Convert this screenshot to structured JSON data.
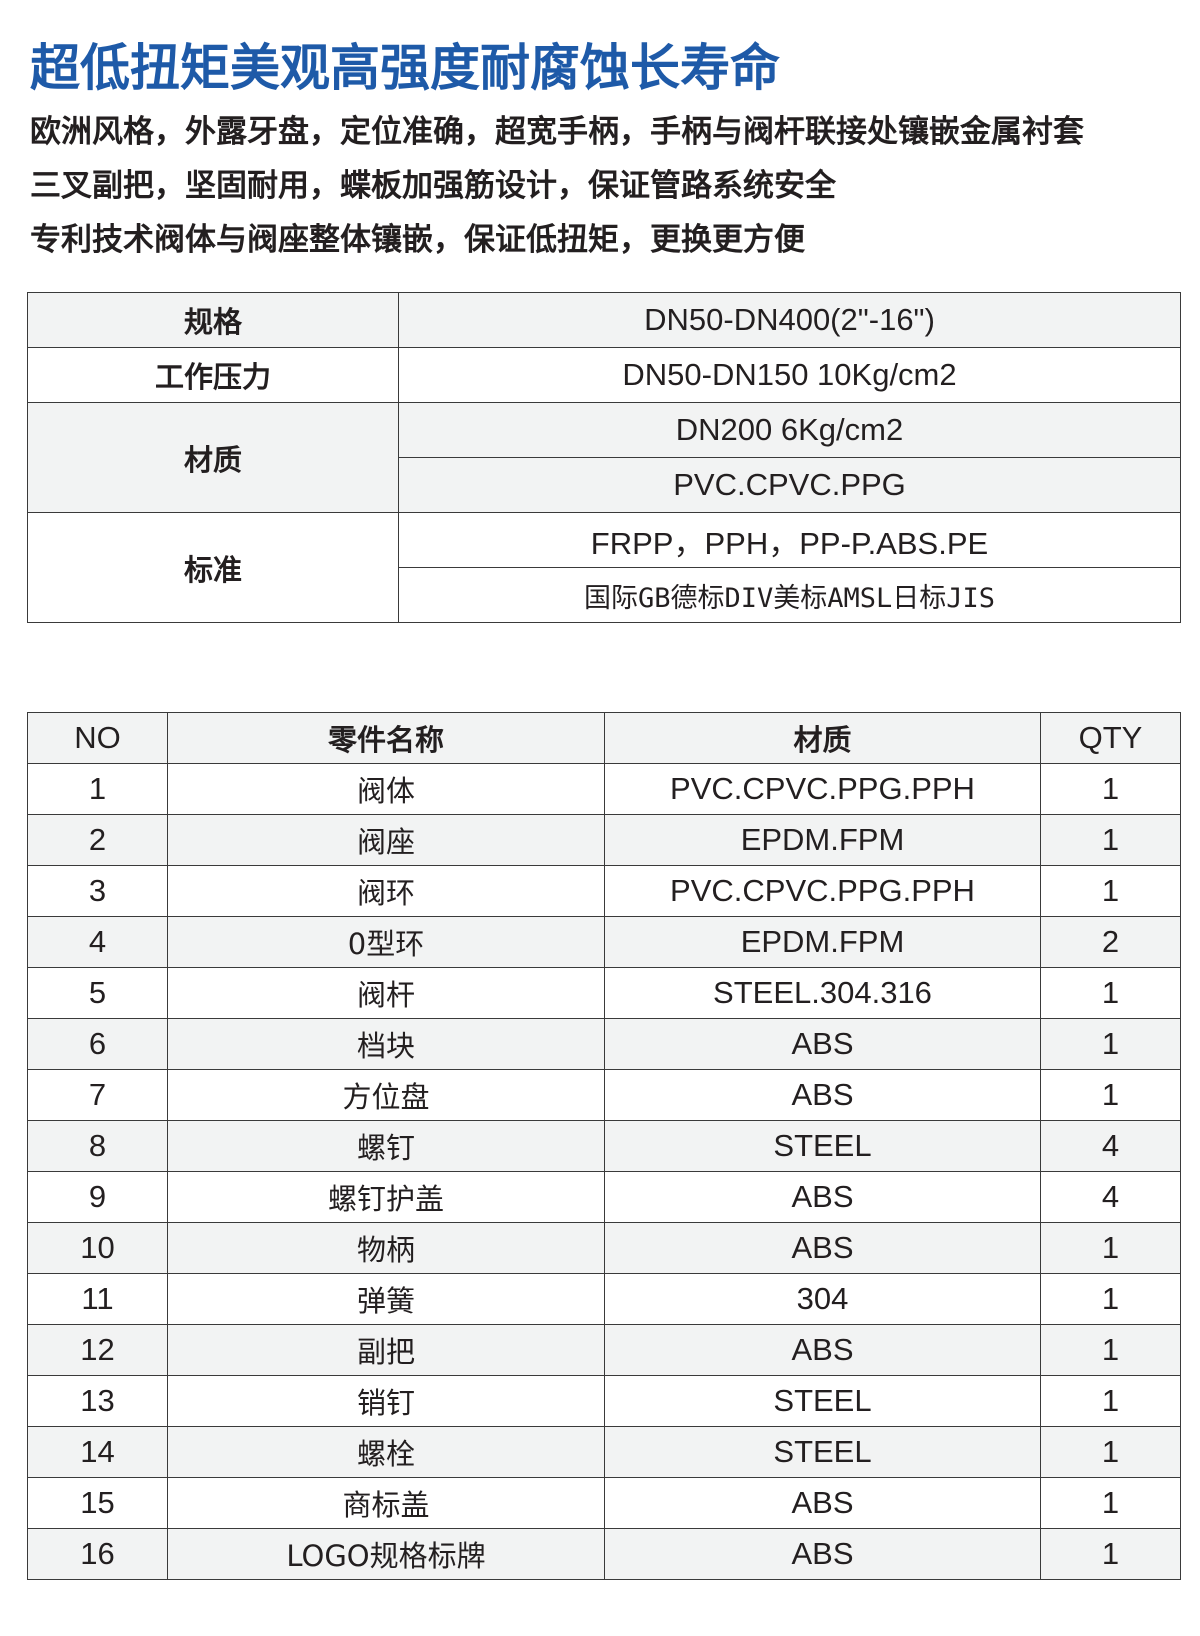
{
  "title": "超低扭矩美观高强度耐腐蚀长寿命",
  "features": [
    "欧洲风格，外露牙盘，定位准确，超宽手柄，手柄与阀杆联接处镶嵌金属衬套",
    "三叉副把，坚固耐用，蝶板加强筋设计，保证管路系统安全",
    "专利技术阀体与阀座整体镶嵌，保证低扭矩，更换更方便"
  ],
  "colors": {
    "title": "#1e5aa8",
    "row_shade": "#f2f3f3",
    "border": "#3a3a3a"
  },
  "spec_table": {
    "spec_label": "规格",
    "spec_value": "DN50-DN400(2\"-16\")",
    "pressure_label": "工作压力",
    "pressure_value_1": "DN50-DN150  10Kg/cm2",
    "material_label": "材质",
    "pressure_value_2": "DN200  6Kg/cm2",
    "material_value_1": "PVC.CPVC.PPG",
    "standard_label": "标准",
    "material_value_2": "FRPP，PPH，PP-P.ABS.PE",
    "standard_value": "国际GB德标DIV美标AMSL日标JIS"
  },
  "parts_table": {
    "headers": [
      "NO",
      "零件名称",
      "材质",
      "QTY"
    ],
    "rows": [
      [
        "1",
        "阀体",
        "PVC.CPVC.PPG.PPH",
        "1"
      ],
      [
        "2",
        "阀座",
        "EPDM.FPM",
        "1"
      ],
      [
        "3",
        "阀环",
        "PVC.CPVC.PPG.PPH",
        "1"
      ],
      [
        "4",
        "0型环",
        "EPDM.FPM",
        "2"
      ],
      [
        "5",
        "阀杆",
        "STEEL.304.316",
        "1"
      ],
      [
        "6",
        "档块",
        "ABS",
        "1"
      ],
      [
        "7",
        "方位盘",
        "ABS",
        "1"
      ],
      [
        "8",
        "螺钉",
        "STEEL",
        "4"
      ],
      [
        "9",
        "螺钉护盖",
        "ABS",
        "4"
      ],
      [
        "10",
        "物柄",
        "ABS",
        "1"
      ],
      [
        "11",
        "弹簧",
        "304",
        "1"
      ],
      [
        "12",
        "副把",
        "ABS",
        "1"
      ],
      [
        "13",
        "销钉",
        "STEEL",
        "1"
      ],
      [
        "14",
        "螺栓",
        "STEEL",
        "1"
      ],
      [
        "15",
        "商标盖",
        "ABS",
        "1"
      ],
      [
        "16",
        "LOGO规格标牌",
        "ABS",
        "1"
      ]
    ]
  }
}
